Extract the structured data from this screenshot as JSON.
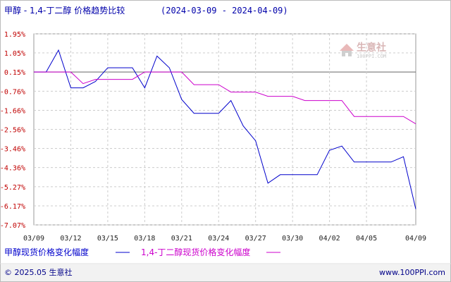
{
  "chart_data": {
    "type": "line",
    "title_main": "甲醇 - 1,4-丁二醇 价格趋势比较",
    "title_range": "(2024-03-09 - 2024-04-09)",
    "xlabel": "",
    "ylabel": "",
    "x_ticks": [
      "03/09",
      "03/12",
      "03/15",
      "03/18",
      "03/21",
      "03/24",
      "03/27",
      "03/30",
      "04/02",
      "04/05",
      "04/09"
    ],
    "y_ticks": [
      "1.95%",
      "1.05%",
      "0.15%",
      "-0.76%",
      "-1.66%",
      "-2.56%",
      "-3.46%",
      "-4.36%",
      "-5.27%",
      "-6.17%",
      "-7.07%"
    ],
    "ylim": [
      -7.07,
      1.95
    ],
    "grid": true,
    "series": [
      {
        "name": "甲醇现货价格变化幅度",
        "color": "#0000cc",
        "points": [
          {
            "x": "03/09",
            "y": 0.15
          },
          {
            "x": "03/10",
            "y": 0.15
          },
          {
            "x": "03/11",
            "y": 1.18
          },
          {
            "x": "03/12",
            "y": -0.6
          },
          {
            "x": "03/13",
            "y": -0.6
          },
          {
            "x": "03/14",
            "y": -0.3
          },
          {
            "x": "03/15",
            "y": 0.35
          },
          {
            "x": "03/16",
            "y": 0.35
          },
          {
            "x": "03/17",
            "y": 0.35
          },
          {
            "x": "03/18",
            "y": -0.6
          },
          {
            "x": "03/19",
            "y": 0.9
          },
          {
            "x": "03/20",
            "y": 0.35
          },
          {
            "x": "03/21",
            "y": -1.15
          },
          {
            "x": "03/22",
            "y": -1.8
          },
          {
            "x": "03/23",
            "y": -1.8
          },
          {
            "x": "03/24",
            "y": -1.8
          },
          {
            "x": "03/25",
            "y": -1.2
          },
          {
            "x": "03/26",
            "y": -2.4
          },
          {
            "x": "03/27",
            "y": -3.1
          },
          {
            "x": "03/28",
            "y": -5.1
          },
          {
            "x": "03/29",
            "y": -4.7
          },
          {
            "x": "03/30",
            "y": -4.7
          },
          {
            "x": "03/31",
            "y": -4.7
          },
          {
            "x": "04/01",
            "y": -4.7
          },
          {
            "x": "04/02",
            "y": -3.55
          },
          {
            "x": "04/03",
            "y": -3.35
          },
          {
            "x": "04/04",
            "y": -4.1
          },
          {
            "x": "04/05",
            "y": -4.1
          },
          {
            "x": "04/06",
            "y": -4.1
          },
          {
            "x": "04/07",
            "y": -4.1
          },
          {
            "x": "04/08",
            "y": -3.85
          },
          {
            "x": "04/09",
            "y": -6.32
          }
        ]
      },
      {
        "name": "1,4-丁二醇现货价格变化幅度",
        "color": "#cc00cc",
        "points": [
          {
            "x": "03/09",
            "y": 0.15
          },
          {
            "x": "03/10",
            "y": 0.15
          },
          {
            "x": "03/11",
            "y": 0.15
          },
          {
            "x": "03/12",
            "y": 0.15
          },
          {
            "x": "03/13",
            "y": -0.4
          },
          {
            "x": "03/14",
            "y": -0.2
          },
          {
            "x": "03/15",
            "y": -0.2
          },
          {
            "x": "03/16",
            "y": -0.2
          },
          {
            "x": "03/17",
            "y": -0.2
          },
          {
            "x": "03/18",
            "y": 0.15
          },
          {
            "x": "03/19",
            "y": 0.15
          },
          {
            "x": "03/20",
            "y": 0.15
          },
          {
            "x": "03/21",
            "y": 0.15
          },
          {
            "x": "03/22",
            "y": -0.45
          },
          {
            "x": "03/23",
            "y": -0.45
          },
          {
            "x": "03/24",
            "y": -0.45
          },
          {
            "x": "03/25",
            "y": -0.8
          },
          {
            "x": "03/26",
            "y": -0.8
          },
          {
            "x": "03/27",
            "y": -0.8
          },
          {
            "x": "03/28",
            "y": -1.0
          },
          {
            "x": "03/29",
            "y": -1.0
          },
          {
            "x": "03/30",
            "y": -1.0
          },
          {
            "x": "03/31",
            "y": -1.2
          },
          {
            "x": "04/01",
            "y": -1.2
          },
          {
            "x": "04/02",
            "y": -1.2
          },
          {
            "x": "04/03",
            "y": -1.2
          },
          {
            "x": "04/04",
            "y": -1.95
          },
          {
            "x": "04/05",
            "y": -1.95
          },
          {
            "x": "04/06",
            "y": -1.95
          },
          {
            "x": "04/07",
            "y": -1.95
          },
          {
            "x": "04/08",
            "y": -1.95
          },
          {
            "x": "04/09",
            "y": -2.3
          },
          {
            "x": "04/10",
            "y": -2.3
          },
          {
            "x": "04/11",
            "y": -2.3
          }
        ]
      }
    ]
  },
  "legend": {
    "series1_label": "甲醇现货价格变化幅度",
    "series2_label": "1,4-丁二醇现货价格变化幅度",
    "series1_color": "#0000cc",
    "series2_color": "#cc00cc"
  },
  "watermark": {
    "brand": "生意社",
    "url": "100PPI.COM"
  },
  "footer": {
    "copyright": "© 2025.05 生意社",
    "site": "www.100PPI.com"
  }
}
